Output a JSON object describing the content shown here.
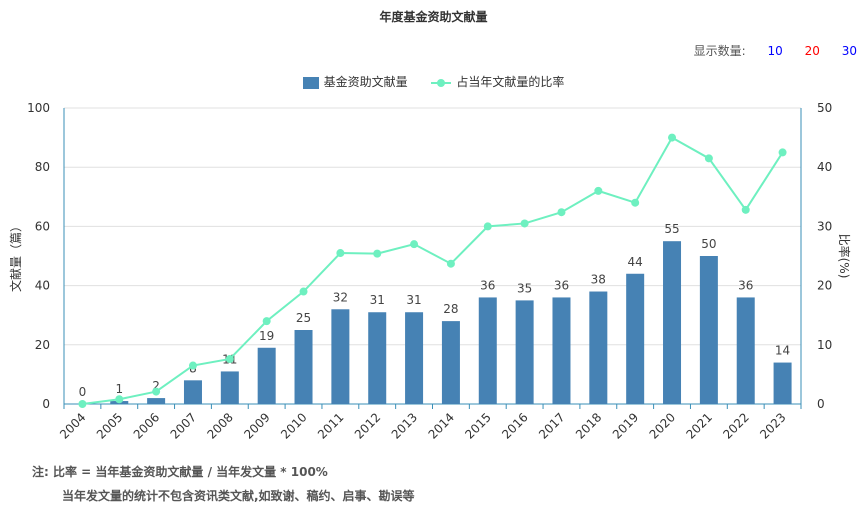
{
  "page": {
    "title": "年度基金资助文献量",
    "count_label": "显示数量:",
    "count_options": [
      {
        "label": "10",
        "color": "#0000ff"
      },
      {
        "label": "20",
        "color": "#ff0000"
      },
      {
        "label": "30",
        "color": "#0000ff"
      }
    ],
    "notes": [
      "注:  比率 = 当年基金资助文献量 / 当年发文量 * 100%",
      "当年发文量的统计不包含资讯类文献,如致谢、稿约、启事、勘误等"
    ]
  },
  "chart_data": {
    "type": "bar",
    "categories": [
      "2004",
      "2005",
      "2006",
      "2007",
      "2008",
      "2009",
      "2010",
      "2011",
      "2012",
      "2013",
      "2014",
      "2015",
      "2016",
      "2017",
      "2018",
      "2019",
      "2020",
      "2021",
      "2022",
      "2023"
    ],
    "series": [
      {
        "name": "基金资助文献量",
        "type": "bar",
        "axis": "left",
        "color": "#4682b4",
        "values": [
          0,
          1,
          2,
          8,
          11,
          19,
          25,
          32,
          31,
          31,
          28,
          36,
          35,
          36,
          38,
          44,
          55,
          50,
          36,
          14
        ]
      },
      {
        "name": "占当年文献量的比率",
        "type": "line",
        "axis": "right",
        "color": "#6ef0c0",
        "values": [
          0,
          0.8,
          2.1,
          6.5,
          7.6,
          14.0,
          19.0,
          25.5,
          25.4,
          27.0,
          23.7,
          30.0,
          30.5,
          32.4,
          36.0,
          34.0,
          45.0,
          41.5,
          32.8,
          42.5
        ]
      }
    ],
    "ylabel": "文献量（篇）",
    "y2label": "比率(%)",
    "ylim": [
      0,
      100
    ],
    "y2lim": [
      0,
      50
    ],
    "yticks": [
      "0",
      "20",
      "40",
      "60",
      "80",
      "100"
    ],
    "y2ticks": [
      "0",
      "10",
      "20",
      "30",
      "40",
      "50"
    ],
    "grid": true,
    "legend_position": "top-center"
  }
}
